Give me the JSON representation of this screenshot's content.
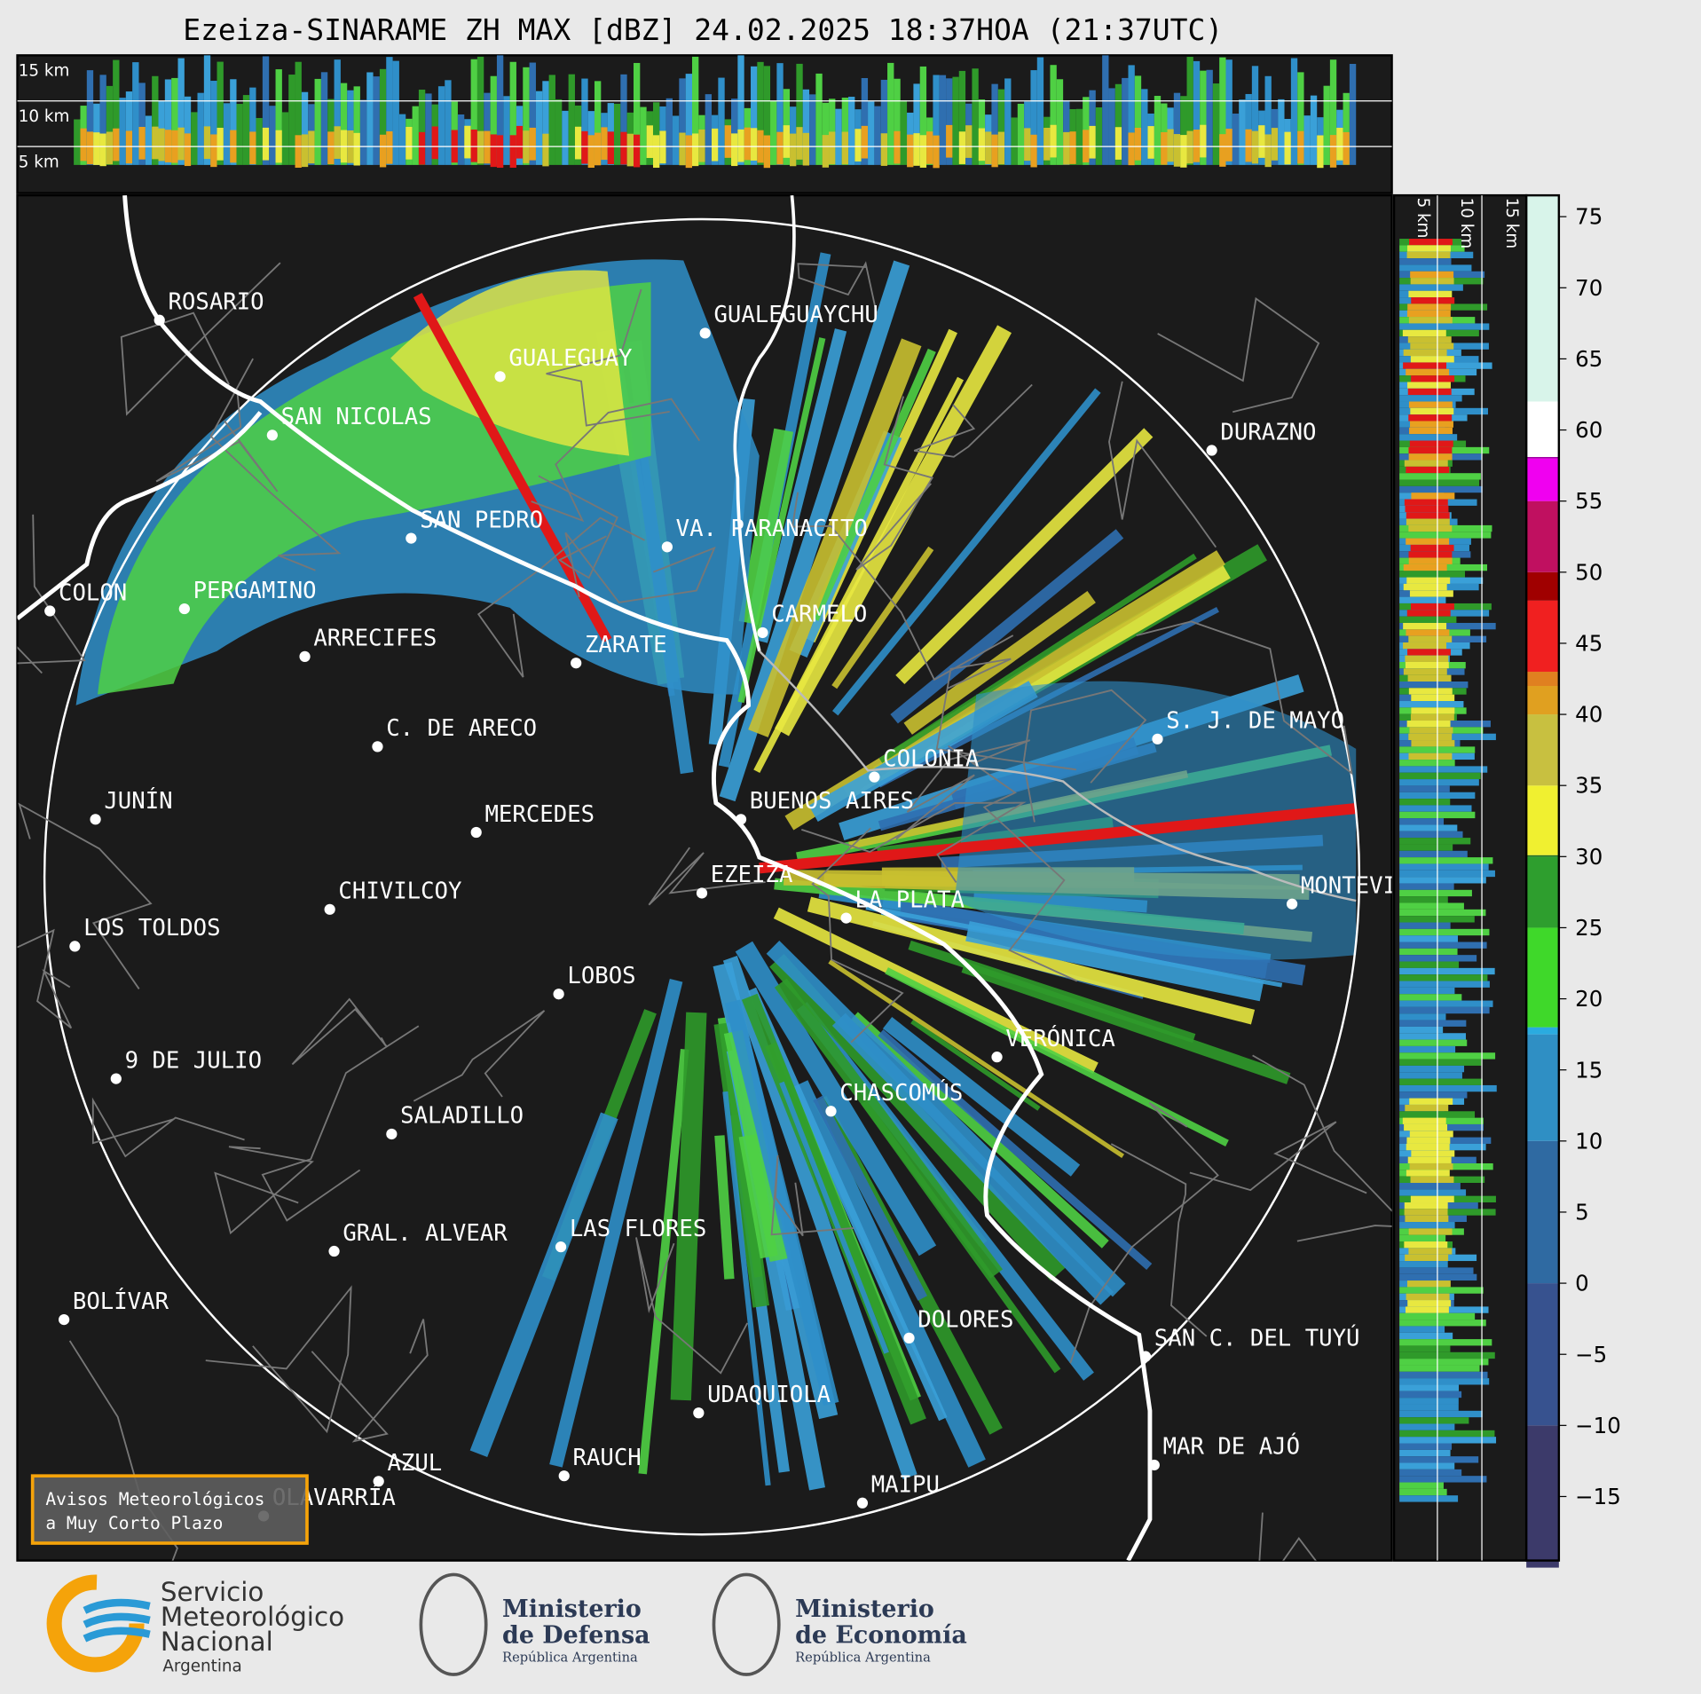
{
  "header": {
    "title": "Ezeiza-SINARAME ZH MAX [dBZ] 24.02.2025 18:37HOA (21:37UTC)"
  },
  "cross_section_top": {
    "height_labels": [
      "15 km",
      "10 km",
      "5 km"
    ]
  },
  "cross_section_right": {
    "height_labels": [
      "5 km",
      "10 km",
      "15 km"
    ]
  },
  "colorbar": {
    "range": [
      -19.5,
      76.5
    ],
    "ticks": [
      75,
      70,
      65,
      60,
      55,
      50,
      45,
      40,
      35,
      30,
      25,
      20,
      15,
      10,
      5,
      0,
      {
        "value": -5,
        "label": "−5"
      },
      {
        "value": -10,
        "label": "−10"
      },
      {
        "value": -15,
        "label": "−15"
      }
    ]
  },
  "map": {
    "cities": [
      "ROSARIO",
      "GUALEGUAYCHU",
      "GUALEGUAY",
      "SAN NICOLAS",
      "DURAZNO",
      "SAN PEDRO",
      "VA. PARANACITO",
      "COLON",
      "PERGAMINO",
      "CARMELO",
      "ARRECIFES",
      "ZARATE",
      "S. J. DE MAYO",
      "C. DE ARECO",
      "COLONIA",
      "JUNÍN",
      "BUENOS AIRES",
      "MERCEDES",
      "EZEIZA",
      "MONTEVIDEO",
      "CHIVILCOY",
      "LA PLATA",
      "LOS TOLDOS",
      "LOBOS",
      "VERÓNICA",
      "9 DE JULIO",
      "CHASCOMÚS",
      "SALADILLO",
      "GRAL. ALVEAR",
      "LAS FLORES",
      "BOLÍVAR",
      "DOLORES",
      "SAN C. DEL TUYÚ",
      "UDAQUIOLA",
      "MAR DE AJÓ",
      "AZUL",
      "RAUCH",
      "OLAVARRÍA",
      "MAIPU"
    ]
  },
  "notice": {
    "lines": [
      "Avisos Meteorológicos",
      "a Muy Corto Plazo"
    ]
  },
  "footer": {
    "smn": [
      "Servicio",
      "Meteorológico",
      "Nacional",
      "Argentina"
    ],
    "defensa": [
      "Ministerio",
      "de Defensa",
      "República Argentina"
    ],
    "economia": [
      "Ministerio",
      "de Economía",
      "República Argentina"
    ]
  }
}
